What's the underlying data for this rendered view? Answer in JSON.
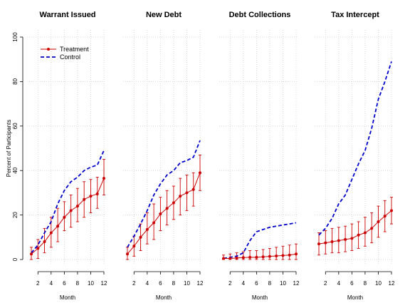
{
  "chart_data": {
    "type": "line",
    "ylabel": "Percent of Participants",
    "xlabel": "Month",
    "ylim": [
      0,
      100
    ],
    "yticks": [
      0,
      20,
      40,
      60,
      80,
      100
    ],
    "xticks": [
      2,
      4,
      6,
      8,
      10,
      12
    ],
    "x": [
      1,
      2,
      3,
      4,
      5,
      6,
      7,
      8,
      9,
      10,
      11,
      12
    ],
    "grid": true,
    "legend": {
      "placement": "top-left",
      "entries": [
        "Treatment",
        "Control"
      ]
    },
    "colors": {
      "Treatment": "#cc0000",
      "Control": "#0000cc"
    },
    "panels": [
      {
        "title": "Warrant Issued",
        "series": [
          {
            "name": "Treatment",
            "values": [
              2.5,
              5,
              8,
              12,
              15,
              19,
              22,
              24,
              27,
              28.5,
              29.5,
              36.5
            ],
            "lower": [
              0,
              0.5,
              3,
              5.5,
              8,
              13,
              14.5,
              17,
              19,
              21,
              23,
              29
            ],
            "upper": [
              5.5,
              9,
              14,
              19,
              23,
              26,
              29,
              32,
              35,
              36,
              37,
              45
            ]
          },
          {
            "name": "Control",
            "values": [
              3,
              6.5,
              12,
              17,
              25,
              31,
              35,
              37,
              40,
              41.5,
              42.5,
              49
            ]
          }
        ]
      },
      {
        "title": "New Debt",
        "series": [
          {
            "name": "Treatment",
            "values": [
              2.5,
              6,
              10,
              13.5,
              16.5,
              20.5,
              23,
              25.5,
              28.5,
              30,
              31.5,
              39
            ],
            "lower": [
              0,
              1.5,
              4,
              7,
              9,
              13,
              15.5,
              18,
              20,
              22,
              24,
              31
            ],
            "upper": [
              5.5,
              10.5,
              16,
              21,
              25,
              28,
              31,
              33,
              36.5,
              38,
              39,
              47
            ]
          },
          {
            "name": "Control",
            "values": [
              5.5,
              10.5,
              16,
              22,
              29,
              34,
              38,
              40,
              43.5,
              44.5,
              46,
              53.5
            ]
          }
        ]
      },
      {
        "title": "Debt Collections",
        "series": [
          {
            "name": "Treatment",
            "values": [
              0.5,
              0.5,
              0.7,
              0.9,
              1.0,
              1.0,
              1.2,
              1.4,
              1.6,
              1.8,
              2.0,
              2.5
            ],
            "lower": [
              0,
              0,
              0,
              0,
              0,
              0,
              0,
              0,
              0,
              0,
              0,
              0
            ],
            "upper": [
              2,
              2.5,
              3,
              3.5,
              4,
              4,
              4.5,
              5,
              5.5,
              6,
              6.5,
              7
            ]
          },
          {
            "name": "Control",
            "values": [
              0.5,
              1.0,
              1.5,
              3,
              8.5,
              12.5,
              13.5,
              14.5,
              15,
              15.5,
              16,
              16.5
            ]
          }
        ]
      },
      {
        "title": "Tax Intercept",
        "series": [
          {
            "name": "Treatment",
            "values": [
              7,
              7.5,
              8,
              8.5,
              9,
              9.5,
              11,
              12,
              14,
              17,
              19.5,
              22
            ],
            "lower": [
              2,
              2.5,
              3,
              3,
              3.5,
              4,
              5,
              6,
              7.5,
              10,
              12.5,
              16
            ],
            "upper": [
              12,
              13,
              14,
              14.5,
              15,
              16,
              17,
              19,
              21,
              24,
              26.5,
              28
            ]
          },
          {
            "name": "Control",
            "values": [
              11,
              14,
              18.5,
              25,
              29,
              36,
              43,
              49,
              59,
              72,
              80,
              89
            ]
          }
        ]
      }
    ]
  }
}
